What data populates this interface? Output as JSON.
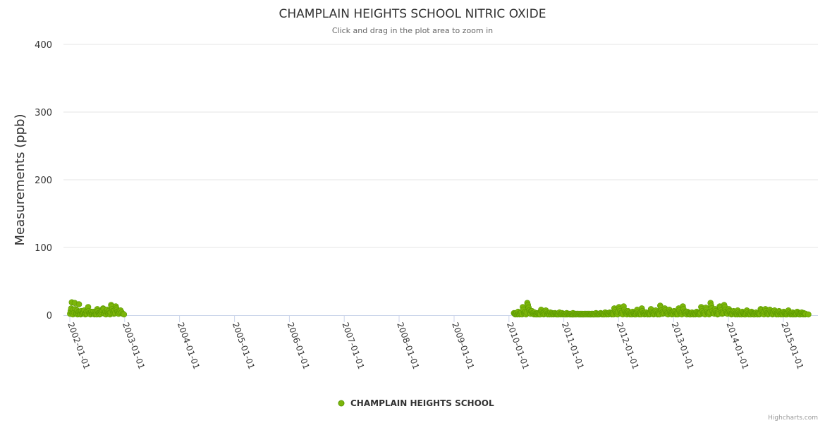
{
  "chart_data": {
    "type": "scatter",
    "title": "CHAMPLAIN HEIGHTS SCHOOL NITRIC OXIDE",
    "subtitle": "Click and drag in the plot area to zoom in",
    "xlabel": "",
    "ylabel": "Measurements (ppb)",
    "ylim": [
      0,
      400
    ],
    "yticks": [
      "0",
      "100",
      "200",
      "300",
      "400"
    ],
    "xlim": [
      "2001-11-15",
      "2015-09-01"
    ],
    "xticks": [
      "2002-01-01",
      "2003-01-01",
      "2004-01-01",
      "2005-01-01",
      "2006-01-01",
      "2007-01-01",
      "2008-01-01",
      "2009-01-01",
      "2010-01-01",
      "2011-01-01",
      "2012-01-01",
      "2013-01-01",
      "2014-01-01",
      "2015-01-01"
    ],
    "grid": true,
    "legend": {
      "position": "bottom-center",
      "entries": [
        "CHAMPLAIN HEIGHTS SCHOOL"
      ]
    },
    "credit": "Highcharts.com",
    "colors": {
      "marker": "#7cb50a",
      "marker_stroke": "#5a9a00",
      "grid": "#e6e6e6",
      "axis": "#ccd6eb"
    },
    "series": [
      {
        "name": "CHAMPLAIN HEIGHTS SCHOOL",
        "monthly_values": {
          "2002-01": [
            2,
            6,
            10,
            19,
            3,
            1,
            8,
            4
          ],
          "2002-02": [
            18,
            9,
            4,
            2,
            7,
            1,
            3,
            5
          ],
          "2002-03": [
            16,
            5,
            3,
            1,
            6,
            2,
            4,
            3
          ],
          "2002-04": [
            4,
            7,
            2,
            1,
            3,
            5,
            2,
            6
          ],
          "2002-05": [
            12,
            6,
            3,
            2,
            1,
            4,
            5,
            2
          ],
          "2002-06": [
            3,
            5,
            2,
            1,
            4,
            2,
            3,
            1
          ],
          "2002-07": [
            9,
            6,
            3,
            2,
            1,
            4,
            2,
            5
          ],
          "2002-08": [
            4,
            7,
            10,
            9,
            3,
            2,
            5,
            1
          ],
          "2002-09": [
            5,
            8,
            4,
            2,
            6,
            3,
            1,
            4
          ],
          "2002-10": [
            15,
            13,
            9,
            6,
            4,
            2,
            7,
            3
          ],
          "2002-11": [
            13,
            10,
            8,
            5,
            3,
            2,
            6,
            4
          ],
          "2002-12": [
            7,
            4,
            2,
            1
          ],
          "2010-02": [
            3,
            2,
            1,
            2,
            3,
            1,
            2
          ],
          "2010-03": [
            5,
            2,
            1,
            3,
            2,
            4,
            1
          ],
          "2010-04": [
            12,
            8,
            3,
            2,
            5,
            1,
            4
          ],
          "2010-05": [
            18,
            15,
            11,
            7,
            4,
            2,
            6
          ],
          "2010-06": [
            6,
            3,
            2,
            1,
            4,
            2,
            1
          ],
          "2010-07": [
            2,
            1,
            3,
            2,
            1,
            2,
            1
          ],
          "2010-08": [
            8,
            5,
            3,
            2,
            1,
            4,
            2
          ],
          "2010-09": [
            7,
            4,
            2,
            1,
            3,
            2,
            1
          ],
          "2010-10": [
            4,
            2,
            1,
            3,
            2,
            1,
            2
          ],
          "2010-11": [
            3,
            2,
            1,
            2,
            1,
            2,
            1
          ],
          "2010-12": [
            4,
            2,
            1,
            2,
            3,
            1,
            2
          ],
          "2011-01": [
            2,
            1,
            2,
            1,
            3,
            1,
            2
          ],
          "2011-02": [
            2,
            1,
            2,
            1,
            2,
            1,
            1
          ],
          "2011-03": [
            3,
            1,
            2,
            1,
            2,
            1,
            2
          ],
          "2011-04": [
            2,
            1,
            2,
            1,
            1,
            2,
            1
          ],
          "2011-05": [
            2,
            1,
            1,
            2,
            1,
            2,
            1
          ],
          "2011-06": [
            2,
            1,
            2,
            1,
            2,
            1,
            1
          ],
          "2011-07": [
            2,
            1,
            2,
            1,
            1,
            2,
            1
          ],
          "2011-08": [
            3,
            1,
            2,
            1,
            2,
            1,
            2
          ],
          "2011-09": [
            3,
            2,
            1,
            2,
            1,
            2,
            1
          ],
          "2011-10": [
            4,
            2,
            1,
            3,
            2,
            1,
            2
          ],
          "2011-11": [
            4,
            3,
            2,
            1,
            2,
            3,
            1
          ],
          "2011-12": [
            10,
            7,
            4,
            2,
            3,
            1,
            5
          ],
          "2012-01": [
            12,
            9,
            6,
            3,
            2,
            4,
            1
          ],
          "2012-02": [
            13,
            8,
            5,
            3,
            2,
            1,
            4
          ],
          "2012-03": [
            6,
            4,
            2,
            1,
            3,
            2,
            1
          ],
          "2012-04": [
            5,
            3,
            2,
            1,
            2,
            1,
            3
          ],
          "2012-05": [
            8,
            4,
            2,
            1,
            3,
            2,
            1
          ],
          "2012-06": [
            10,
            6,
            3,
            2,
            1,
            4,
            2
          ],
          "2012-07": [
            4,
            2,
            1,
            3,
            2,
            1,
            2
          ],
          "2012-08": [
            9,
            5,
            3,
            2,
            1,
            4,
            2
          ],
          "2012-09": [
            7,
            4,
            2,
            1,
            3,
            2,
            1
          ],
          "2012-10": [
            14,
            11,
            7,
            4,
            2,
            5,
            3
          ],
          "2012-11": [
            10,
            7,
            4,
            2,
            3,
            1,
            5
          ],
          "2012-12": [
            8,
            5,
            3,
            2,
            1,
            4,
            2
          ],
          "2013-01": [
            6,
            4,
            2,
            1,
            3,
            2,
            1
          ],
          "2013-02": [
            10,
            7,
            4,
            2,
            3,
            1,
            5
          ],
          "2013-03": [
            13,
            9,
            5,
            3,
            2,
            4,
            1
          ],
          "2013-04": [
            5,
            3,
            2,
            1,
            2,
            1,
            3
          ],
          "2013-05": [
            4,
            2,
            1,
            3,
            2,
            1,
            2
          ],
          "2013-06": [
            5,
            3,
            2,
            1,
            2,
            1,
            3
          ],
          "2013-07": [
            12,
            9,
            6,
            3,
            2,
            4,
            1
          ],
          "2013-08": [
            11,
            8,
            5,
            3,
            2,
            1,
            4
          ],
          "2013-09": [
            18,
            14,
            10,
            6,
            3,
            4,
            2
          ],
          "2013-10": [
            9,
            6,
            3,
            2,
            1,
            4,
            2
          ],
          "2013-11": [
            13,
            11,
            7,
            4,
            2,
            5,
            3
          ],
          "2013-12": [
            15,
            12,
            8,
            5,
            3,
            2,
            6
          ],
          "2014-01": [
            9,
            6,
            4,
            2,
            1,
            3,
            2
          ],
          "2014-02": [
            6,
            4,
            2,
            1,
            3,
            2,
            1
          ],
          "2014-03": [
            7,
            4,
            2,
            1,
            3,
            2,
            1
          ],
          "2014-04": [
            5,
            3,
            2,
            1,
            2,
            1,
            3
          ],
          "2014-05": [
            7,
            4,
            2,
            1,
            3,
            2,
            1
          ],
          "2014-06": [
            5,
            3,
            2,
            1,
            2,
            1,
            3
          ],
          "2014-07": [
            4,
            2,
            1,
            3,
            2,
            1,
            2
          ],
          "2014-08": [
            9,
            7,
            4,
            2,
            3,
            1,
            5
          ],
          "2014-09": [
            9,
            6,
            3,
            2,
            1,
            4,
            2
          ],
          "2014-10": [
            8,
            5,
            3,
            2,
            1,
            4,
            2
          ],
          "2014-11": [
            7,
            4,
            2,
            1,
            3,
            2,
            1
          ],
          "2014-12": [
            6,
            4,
            2,
            1,
            3,
            2,
            1
          ],
          "2015-01": [
            5,
            3,
            2,
            1,
            2,
            1,
            3
          ],
          "2015-02": [
            7,
            4,
            2,
            1,
            3,
            2,
            1
          ],
          "2015-03": [
            4,
            2,
            1,
            3,
            2,
            1,
            2
          ],
          "2015-04": [
            5,
            3,
            2,
            1,
            2,
            1,
            3
          ],
          "2015-05": [
            4,
            2,
            1,
            3,
            2,
            1,
            2
          ],
          "2015-06": [
            1
          ]
        }
      }
    ]
  }
}
